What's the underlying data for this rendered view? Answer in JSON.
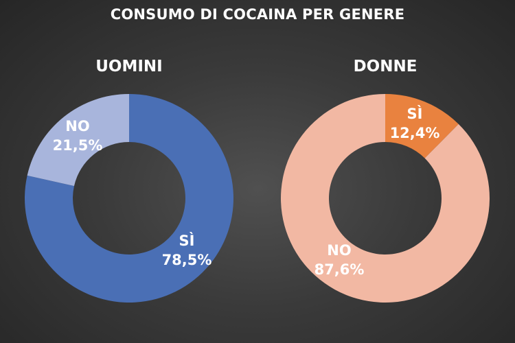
{
  "title": "CONSUMO DI COCAINA PER GENERE",
  "chart_data": [
    {
      "type": "pie",
      "donut": true,
      "title": "UOMINI",
      "categories": [
        "SÌ",
        "NO"
      ],
      "values": [
        78.5,
        21.5
      ],
      "labels": [
        "78,5%",
        "21,5%"
      ],
      "colors": [
        "#4a6fb5",
        "#a8b5dc"
      ]
    },
    {
      "type": "pie",
      "donut": true,
      "title": "DONNE",
      "categories": [
        "SÌ",
        "NO"
      ],
      "values": [
        12.4,
        87.6
      ],
      "labels": [
        "12,4%",
        "87,6%"
      ],
      "colors": [
        "#e9823f",
        "#f2b8a3"
      ]
    }
  ]
}
